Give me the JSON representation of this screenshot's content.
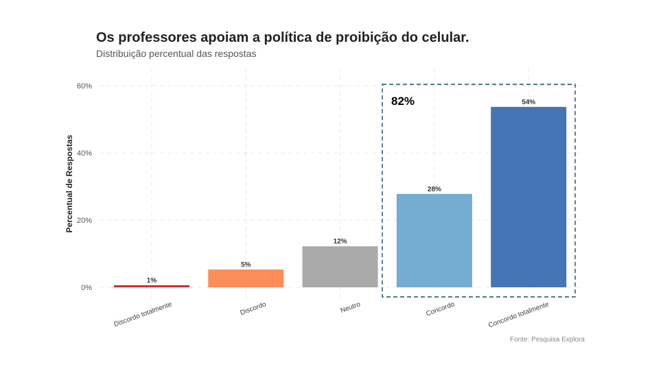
{
  "chart_data": {
    "type": "bar",
    "title": "Os professores apoiam a política de proibição do celular.",
    "subtitle": "Distribuição percentual das respostas",
    "caption": "Fonte: Pesquisa Explora",
    "xlabel": "",
    "ylabel": "Percentual de Respostas",
    "ylim": [
      0,
      60
    ],
    "yticks": [
      0,
      20,
      40,
      60
    ],
    "ytick_labels": [
      "0%",
      "20%",
      "40%",
      "60%"
    ],
    "grid": true,
    "categories": [
      "Discordo totalmente",
      "Discordo",
      "Neutro",
      "Concordo",
      "Concordo totalmente"
    ],
    "values": [
      0.6,
      5.3,
      12.2,
      27.8,
      53.7
    ],
    "data_labels": [
      "1%",
      "5%",
      "12%",
      "28%",
      "54%"
    ],
    "colors": [
      "#d73027",
      "#fc8d59",
      "#aaaaaa",
      "#74add1",
      "#4575b4"
    ],
    "annotation": {
      "text": "82%",
      "highlight_categories": [
        "Concordo",
        "Concordo totalmente"
      ],
      "border_color": "#1f4e5f"
    }
  }
}
